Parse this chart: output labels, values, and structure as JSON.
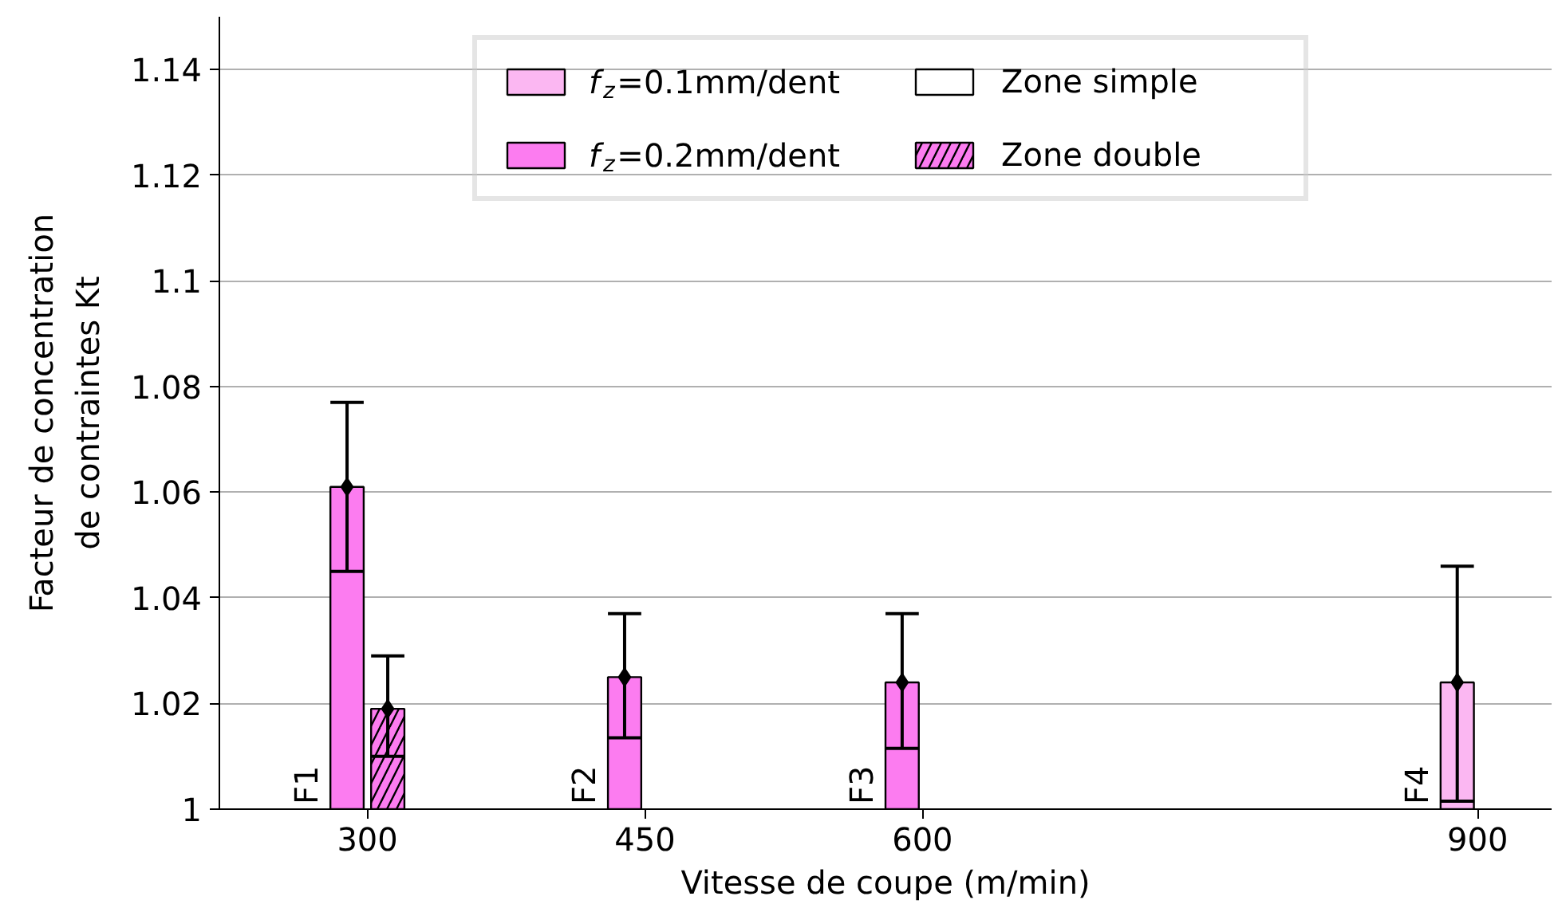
{
  "chart_data": {
    "type": "bar",
    "xlabel": "Vitesse de coupe (m/min)",
    "ylabel": "Facteur de concentration\nde contraintes Kt",
    "xlim": [
      220,
      940
    ],
    "xticks": [
      300,
      450,
      600,
      900
    ],
    "ylim": [
      1,
      1.15
    ],
    "yticks": [
      {
        "value": 1,
        "label": "1"
      },
      1.02,
      1.04,
      1.06,
      1.08,
      {
        "value": 1.1,
        "label": "1.1"
      },
      1.12,
      1.14
    ],
    "grid": "y",
    "legend": "top",
    "series": [
      {
        "name": "f$_{z}$=0.1mm/dent",
        "color": "#fbb7f2",
        "x": [
          889
        ],
        "values": [
          1.024
        ],
        "errors": [
          [
            1.0015,
            1.046
          ]
        ]
      },
      {
        "name": "f$_{z}$=0.2mm/dent",
        "color": "#fc7cf0",
        "x": [
          289,
          439,
          589
        ],
        "values": [
          1.061,
          1.025,
          1.024
        ],
        "errors": [
          [
            1.045,
            1.077
          ],
          [
            1.0135,
            1.037
          ],
          [
            1.0115,
            1.037
          ]
        ]
      },
      {
        "name": "Zone double",
        "color": "#fc7cf0",
        "x": [
          311
        ],
        "values": [
          1.019
        ],
        "errors": [
          [
            1.01,
            1.029
          ]
        ]
      },
      {
        "type": "scatter",
        "marker": "diamond",
        "color": "#000000",
        "x": [
          289,
          311,
          439,
          589,
          889
        ],
        "values": [
          1.061,
          1.019,
          1.025,
          1.024,
          1.024
        ]
      }
    ],
    "annotations": [
      "F1",
      "F2",
      "F3",
      "F4",
      "Zone simple"
    ]
  }
}
